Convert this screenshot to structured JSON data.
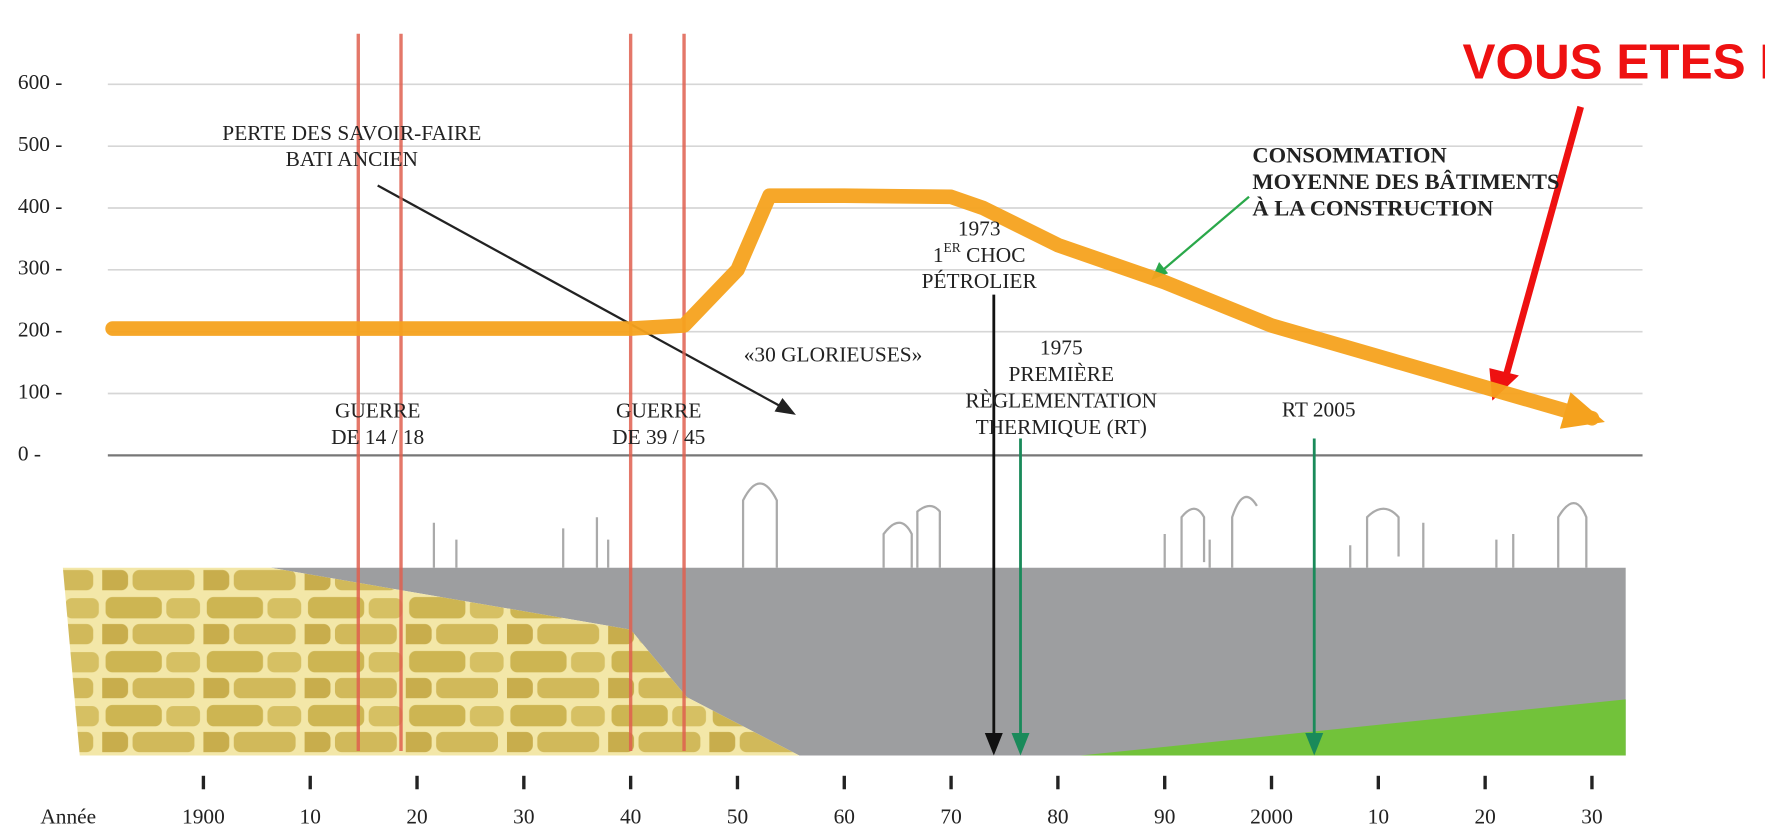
{
  "chart_data": {
    "type": "line",
    "title": "VOUS ETES ICI",
    "xlabel": "Année",
    "x": [
      1891.5,
      1900,
      1910,
      1920,
      1930,
      1940,
      1945,
      1950,
      1953,
      1960,
      1970,
      1973,
      1980,
      1990,
      2000,
      2010,
      2020,
      2030
    ],
    "series": [
      {
        "color": "#f5a21e",
        "values": [
          205,
          205,
          205,
          205,
          205,
          205,
          210,
          300,
          420,
          420,
          418,
          400,
          340,
          280,
          210,
          160,
          110,
          60
        ]
      }
    ],
    "xlim": [
      1880,
      2045
    ],
    "xticks": [
      {
        "value": 1900,
        "label": "1900"
      },
      {
        "value": 1910,
        "label": "10"
      },
      {
        "value": 1920,
        "label": "20"
      },
      {
        "value": 1930,
        "label": "30"
      },
      {
        "value": 1940,
        "label": "40"
      },
      {
        "value": 1950,
        "label": "50"
      },
      {
        "value": 1960,
        "label": "60"
      },
      {
        "value": 1970,
        "label": "70"
      },
      {
        "value": 1980,
        "label": "80"
      },
      {
        "value": 1990,
        "label": "90"
      },
      {
        "value": 2000,
        "label": "2000"
      },
      {
        "value": 2010,
        "label": "10"
      },
      {
        "value": 2020,
        "label": "20"
      },
      {
        "value": 2030,
        "label": "30"
      }
    ],
    "ylim": [
      0,
      600
    ],
    "yticks": [
      {
        "value": 0,
        "label": "0 -"
      },
      {
        "value": 100,
        "label": "100 -"
      },
      {
        "value": 200,
        "label": "200 -"
      },
      {
        "value": 300,
        "label": "300 -"
      },
      {
        "value": 400,
        "label": "400 -"
      },
      {
        "value": 500,
        "label": "500 -"
      },
      {
        "value": 600,
        "label": "600 -"
      }
    ],
    "grid": true,
    "war_lines": [
      1914.5,
      1918.5,
      1940,
      1945
    ],
    "events": [
      {
        "x": 1974,
        "color": "#111111"
      },
      {
        "x": 1976.5,
        "color": "#1a8a5a"
      },
      {
        "x": 2004,
        "color": "#1a8a5a"
      }
    ],
    "annotations": [
      {
        "lines": [
          "PERTE DES SAVOIR-FAIRE",
          "BATI ANCIEN"
        ]
      },
      {
        "lines": [
          "CONSOMMATION",
          "MOYENNE DES BÂTIMENTS",
          "À LA CONSTRUCTION"
        ]
      },
      {
        "lines": [
          "1973",
          [
            "1",
            "ER",
            " CHOC"
          ],
          "PÉTROLIER"
        ]
      },
      {
        "lines": [
          "«30 GLORIEUSES»"
        ]
      },
      {
        "lines": [
          "1975",
          "PREMIÈRE",
          "RÈGLEMENTATION",
          "THERMIQUE (RT)"
        ]
      },
      {
        "lines": [
          "RT 2005"
        ]
      },
      {
        "lines": [
          "GUERRE",
          "DE 14 / 18"
        ]
      },
      {
        "lines": [
          "GUERRE",
          "DE 39 / 45"
        ]
      }
    ]
  }
}
